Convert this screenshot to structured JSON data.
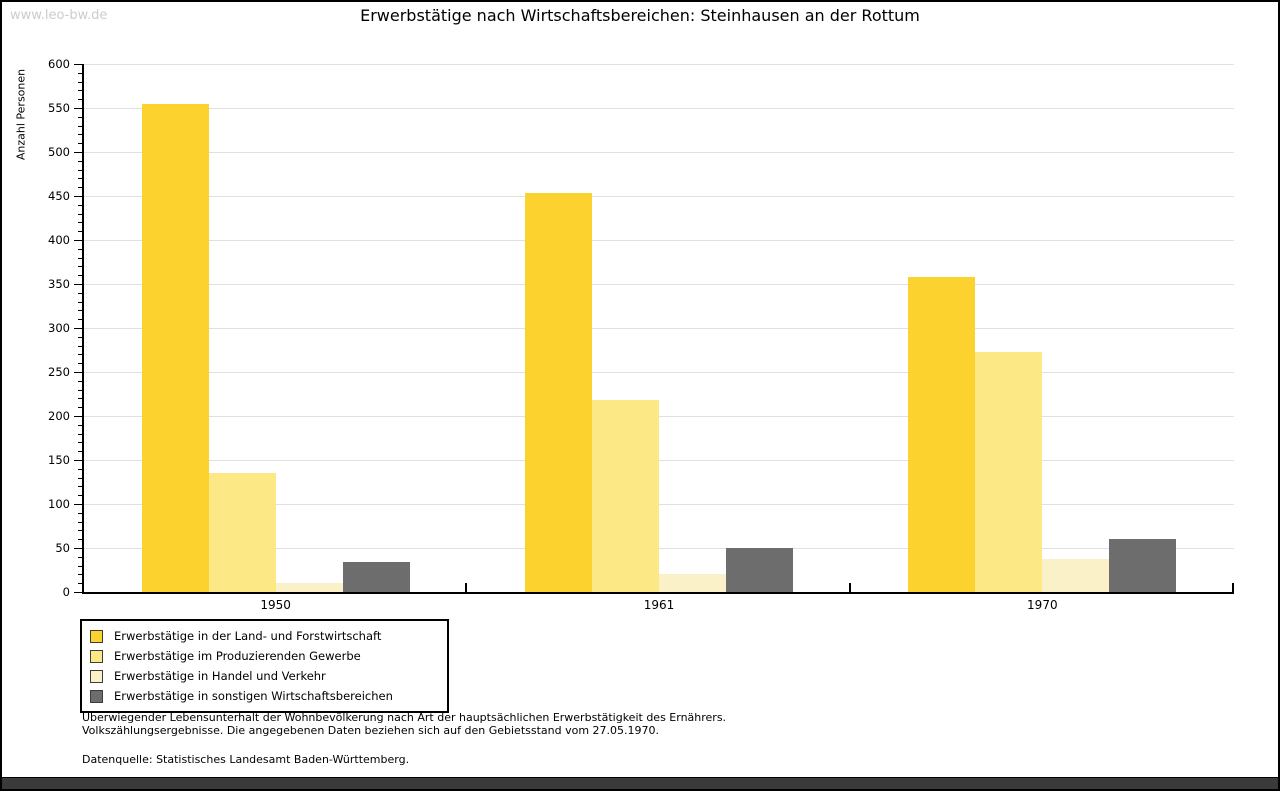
{
  "watermark": "www.leo-bw.de",
  "header": {
    "title": "Erwerbstätige nach Wirtschaftsbereichen: Steinhausen an der Rottum"
  },
  "chart_data": {
    "type": "bar",
    "title": "Erwerbstätige nach Wirtschaftsbereichen: Steinhausen an der Rottum",
    "xlabel": "",
    "ylabel": "Anzahl Personen",
    "categories": [
      "1950",
      "1961",
      "1970"
    ],
    "series": [
      {
        "name": "Erwerbstätige in der Land- und Forstwirtschaft",
        "color": "#fcd32e",
        "values": [
          555,
          453,
          358
        ]
      },
      {
        "name": "Erwerbstätige im Produzierenden Gewerbe",
        "color": "#fce885",
        "values": [
          135,
          218,
          273
        ]
      },
      {
        "name": "Erwerbstätige in Handel und Verkehr",
        "color": "#faf1c8",
        "values": [
          10,
          21,
          37
        ]
      },
      {
        "name": "Erwerbstätige in sonstigen Wirtschaftsbereichen",
        "color": "#6d6d6d",
        "values": [
          34,
          50,
          60
        ]
      }
    ],
    "ylim": [
      0,
      600
    ],
    "ytick_major": 50,
    "ytick_minor": 10,
    "grid": "horizontal",
    "legend_position": "bottom-left"
  },
  "footnotes": {
    "line1": "Überwiegender Lebensunterhalt der Wohnbevölkerung nach Art der hauptsächlichen Erwerbstätigkeit des Ernährers.",
    "line2": "Volkszählungsergebnisse. Die angegebenen Daten beziehen sich auf den Gebietsstand vom 27.05.1970.",
    "source": "Datenquelle: Statistisches Landesamt Baden-Württemberg."
  },
  "colors": {
    "grid": "#e0e0e0",
    "axis": "#000000",
    "watermark": "#cccccc",
    "bottom_band": "#3a3a3a"
  }
}
